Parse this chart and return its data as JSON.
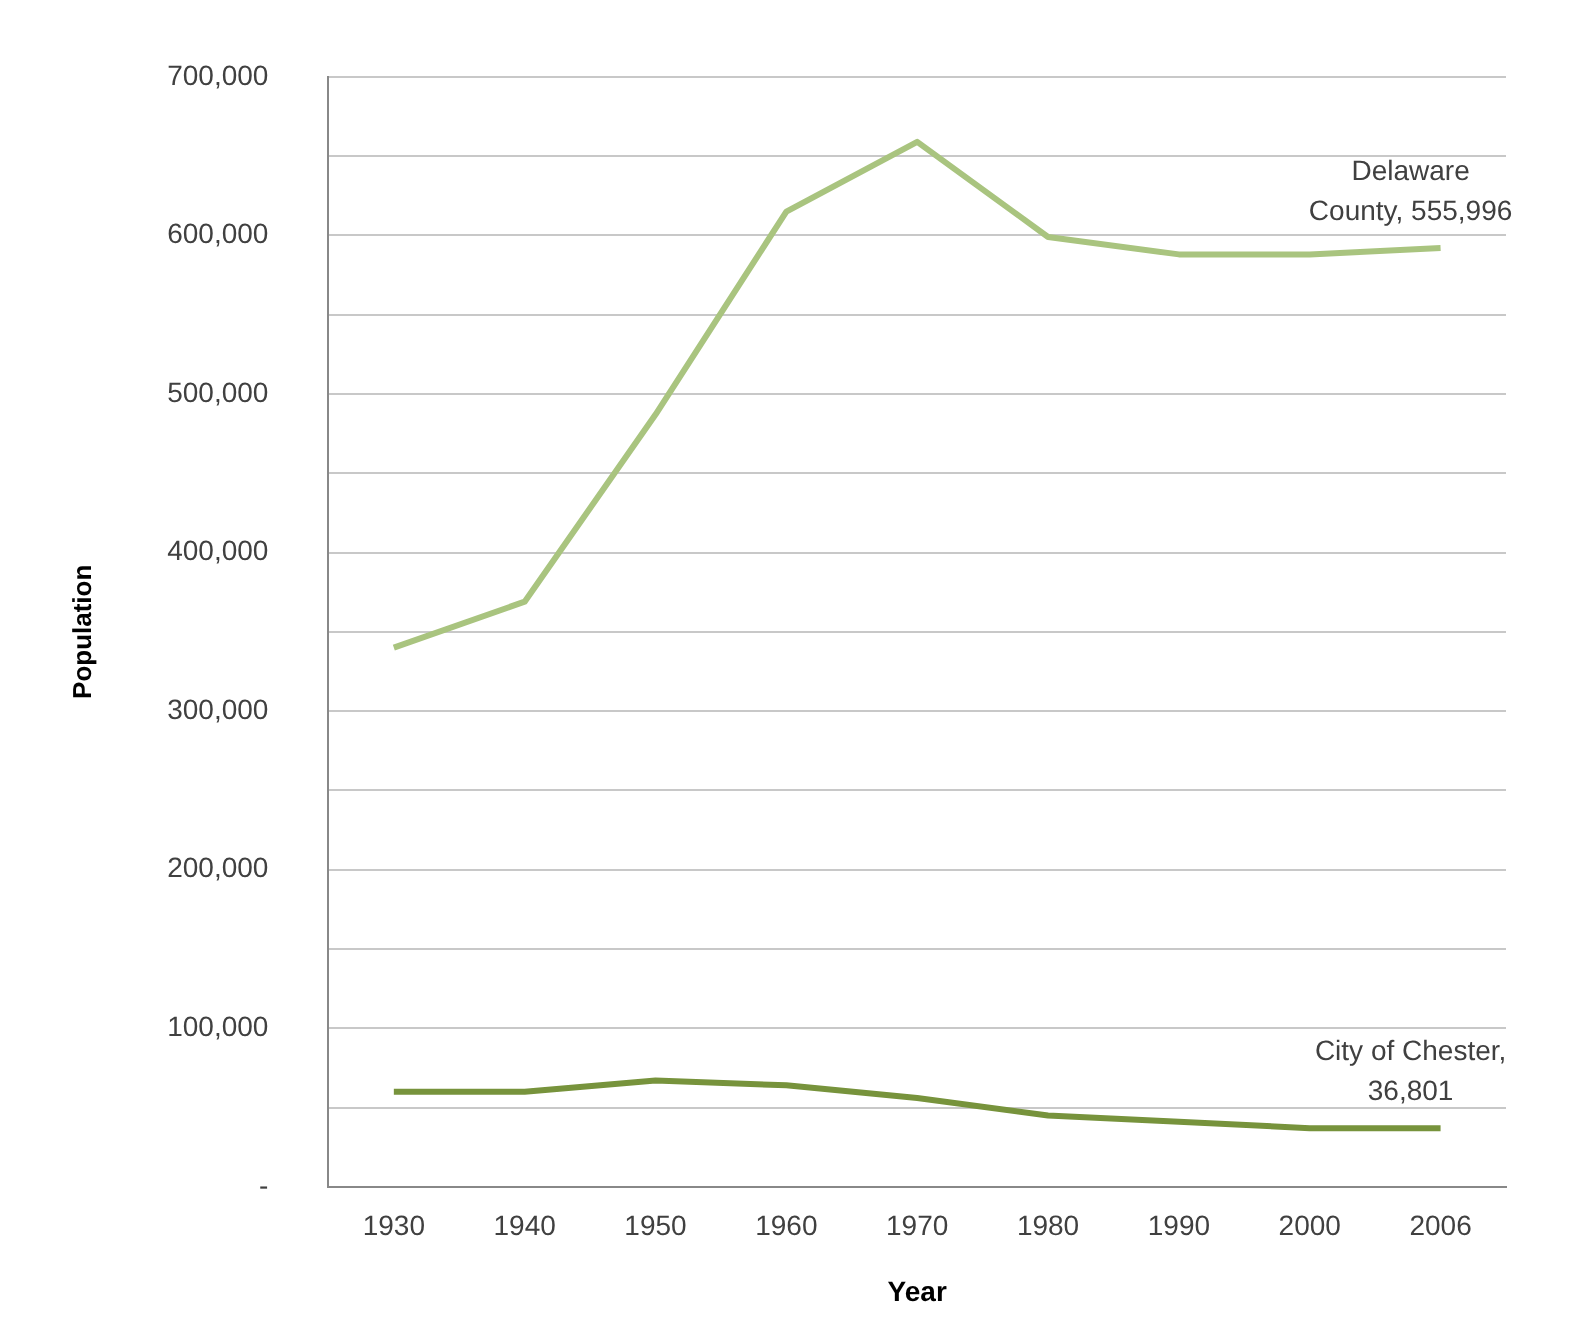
{
  "chart_data": {
    "type": "line",
    "xlabel": "Year",
    "ylabel": "Population",
    "categories": [
      "1930",
      "1940",
      "1950",
      "1960",
      "1970",
      "1980",
      "1990",
      "2000",
      "2006"
    ],
    "series": [
      {
        "color": "#a9c47f",
        "values": [
          340000,
          369000,
          487000,
          615000,
          659000,
          599000,
          588000,
          588000,
          592000
        ]
      },
      {
        "color": "#77933c",
        "values": [
          60000,
          60000,
          67000,
          64000,
          56000,
          45000,
          41000,
          37000,
          37000
        ]
      }
    ],
    "ylim": [
      0,
      700000
    ],
    "yticks": [
      {
        "value": 0,
        "label": "-"
      },
      {
        "value": 50000,
        "label": null
      },
      {
        "value": 100000,
        "label": "100,000"
      },
      {
        "value": 150000,
        "label": null
      },
      {
        "value": 200000,
        "label": "200,000"
      },
      {
        "value": 250000,
        "label": null
      },
      {
        "value": 300000,
        "label": "300,000"
      },
      {
        "value": 350000,
        "label": null
      },
      {
        "value": 400000,
        "label": "400,000"
      },
      {
        "value": 450000,
        "label": null
      },
      {
        "value": 500000,
        "label": "500,000"
      },
      {
        "value": 550000,
        "label": null
      },
      {
        "value": 600000,
        "label": "600,000"
      },
      {
        "value": 650000,
        "label": null
      },
      {
        "value": 700000,
        "label": "700,000"
      }
    ],
    "grid": "y",
    "legend": false,
    "marker": "none",
    "line_style": "solid",
    "annotations": [
      {
        "text": "Delaware County, 555,996",
        "x": "2006",
        "y": 592000
      },
      {
        "text": "City of Chester, 36,801",
        "x": "2006",
        "y": 37000
      }
    ]
  }
}
